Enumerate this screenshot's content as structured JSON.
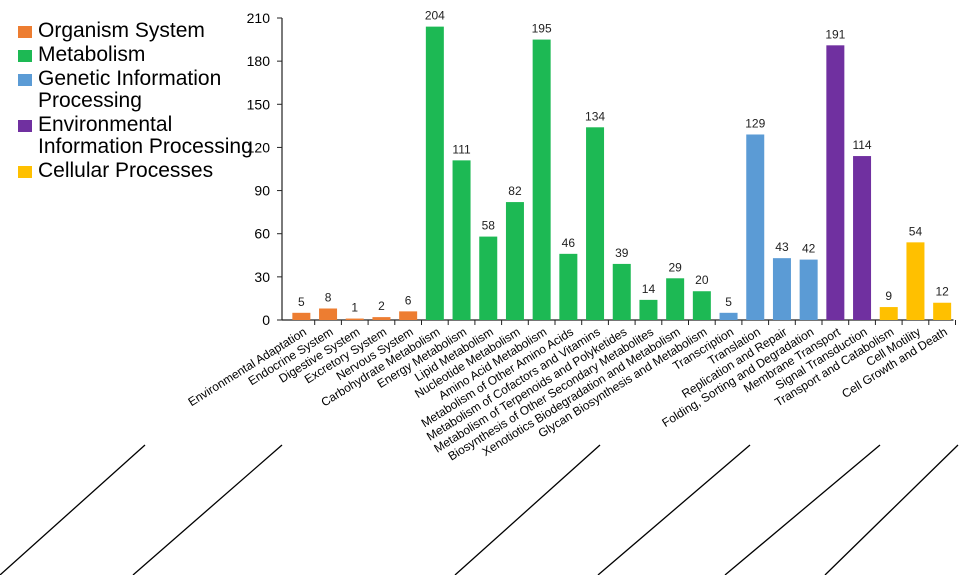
{
  "chart_data": {
    "type": "bar",
    "ylim": [
      0,
      210
    ],
    "yticks": [
      0,
      30,
      60,
      90,
      120,
      150,
      180,
      210
    ],
    "grid": false,
    "legend_position": "left",
    "groups": [
      {
        "name": "Organism System",
        "color": "#ED7D31"
      },
      {
        "name": "Metabolism",
        "color": "#1DB954"
      },
      {
        "name": "Genetic Information Processing",
        "color": "#5B9BD5"
      },
      {
        "name": "Environmental Information Processing",
        "color": "#7030A0"
      },
      {
        "name": "Cellular Processes",
        "color": "#FFC000"
      }
    ],
    "categories": [
      "Environmental Adaptation",
      "Endocrine System",
      "Digestive System",
      "Excretory System",
      "Nervous System",
      "Carbohydrate Metabolism",
      "Energy Metabolism",
      "Lipid Metabolism",
      "Nucleotide Metabolism",
      "Amino Acid Metabolism",
      "Metabolism of Other Amino Acids",
      "Metabolism of Cofactors and Vitamins",
      "Metabolism of Terpenoids and Polyketides",
      "Biosynthesis of Other Secondary Metabolites",
      "Xenotiotics Biodegradation and Metabolism",
      "Glycan Biosynthesis and Metabolism",
      "Transcription",
      "Translation",
      "Replication and Repair",
      "Folding, Sorting and Degradation",
      "Membrane Transport",
      "Signal Transduction",
      "Transport and Catabolism",
      "Cell Motility",
      "Cell Growth and Death"
    ],
    "values": [
      5,
      8,
      1,
      2,
      6,
      204,
      111,
      58,
      82,
      195,
      46,
      134,
      39,
      14,
      29,
      20,
      5,
      129,
      43,
      42,
      191,
      114,
      9,
      54,
      12
    ],
    "group_index": [
      0,
      0,
      0,
      0,
      0,
      1,
      1,
      1,
      1,
      1,
      1,
      1,
      1,
      1,
      1,
      1,
      2,
      2,
      2,
      2,
      3,
      3,
      4,
      4,
      4
    ]
  }
}
